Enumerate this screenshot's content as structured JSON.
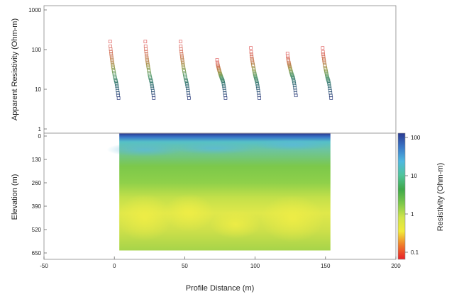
{
  "chart_data": [
    {
      "type": "scatter",
      "ylabel": "Apparent Resistivity (Ohm-m)",
      "yscale": "log",
      "ylim": [
        1,
        1000
      ],
      "yticks": [
        "1",
        "10",
        "100",
        "1000"
      ],
      "xlim": [
        -50,
        200
      ],
      "grid": false,
      "legend": "none",
      "marker": "open-square",
      "soundings": [
        {
          "x0": -3,
          "dx": 6,
          "ytop": 160,
          "ybot": 6
        },
        {
          "x0": 22,
          "dx": 6,
          "ytop": 160,
          "ybot": 6
        },
        {
          "x0": 47,
          "dx": 6,
          "ytop": 160,
          "ybot": 6
        },
        {
          "x0": 73,
          "dx": 6,
          "ytop": 55,
          "ybot": 6
        },
        {
          "x0": 97,
          "dx": 6,
          "ytop": 110,
          "ybot": 6
        },
        {
          "x0": 123,
          "dx": 6,
          "ytop": 80,
          "ybot": 7
        },
        {
          "x0": 148,
          "dx": 6,
          "ytop": 110,
          "ybot": 6
        }
      ],
      "marker_colors": [
        "#e06060",
        "#c87a50",
        "#9aa050",
        "#5aa070",
        "#3a7a78",
        "#2a3a7a"
      ]
    },
    {
      "type": "heatmap",
      "xlabel": "Profile Distance (m)",
      "ylabel": "Elevation (m)",
      "xlim": [
        -50,
        200
      ],
      "xticks": [
        "-50",
        "0",
        "50",
        "100",
        "150",
        "200"
      ],
      "ylim": [
        0,
        650
      ],
      "yticks": [
        "0",
        "130",
        "260",
        "390",
        "520",
        "650"
      ],
      "extent_x": [
        2,
        152
      ],
      "colorbar_label": "Resistivity (Ohm-m)",
      "colorbar_scale": "log",
      "colorbar_ticks": [
        "0.1",
        "1",
        "10",
        "100"
      ],
      "colorbar_range": [
        0.1,
        100
      ],
      "colorscale": [
        "#e8202a",
        "#f07a2a",
        "#f2ea3a",
        "#cfe44a",
        "#7cc84a",
        "#3fa84a",
        "#4fc49a",
        "#4fb8e0",
        "#3a78c8",
        "#2a3a92"
      ]
    }
  ]
}
